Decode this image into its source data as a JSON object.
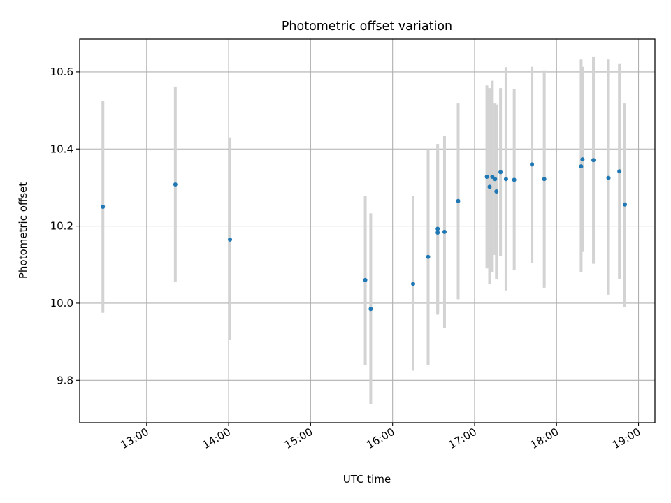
{
  "chart_data": {
    "type": "scatter",
    "title": "Photometric offset variation",
    "xlabel": "UTC time",
    "ylabel": "Photometric offset",
    "x_unit": "UTC time (HH:MM)",
    "xlim": [
      "12:11",
      "19:12"
    ],
    "ylim": [
      9.69,
      10.685
    ],
    "x_ticks": [
      "13:00",
      "14:00",
      "15:00",
      "16:00",
      "17:00",
      "18:00",
      "19:00"
    ],
    "y_ticks": [
      "9.8",
      "10.0",
      "10.2",
      "10.4",
      "10.6"
    ],
    "grid": true,
    "point_color": "#1f77b4",
    "errorbar_color": "#d3d3d3",
    "points": [
      {
        "x": "12:28",
        "y": 10.25,
        "low": 9.975,
        "high": 10.525
      },
      {
        "x": "13:21",
        "y": 10.308,
        "low": 10.055,
        "high": 10.562
      },
      {
        "x": "14:01",
        "y": 10.165,
        "low": 9.905,
        "high": 10.43
      },
      {
        "x": "15:40",
        "y": 10.06,
        "low": 9.84,
        "high": 10.278
      },
      {
        "x": "15:44",
        "y": 9.985,
        "low": 9.738,
        "high": 10.233
      },
      {
        "x": "16:15",
        "y": 10.05,
        "low": 9.825,
        "high": 10.278
      },
      {
        "x": "16:26",
        "y": 10.12,
        "low": 9.84,
        "high": 10.4
      },
      {
        "x": "16:33",
        "y": 10.193,
        "low": 9.97,
        "high": 10.413
      },
      {
        "x": "16:33",
        "y": 10.183,
        "low": 9.975,
        "high": 10.395
      },
      {
        "x": "16:38",
        "y": 10.185,
        "low": 9.935,
        "high": 10.433
      },
      {
        "x": "16:48",
        "y": 10.265,
        "low": 10.01,
        "high": 10.518
      },
      {
        "x": "17:09",
        "y": 10.328,
        "low": 10.09,
        "high": 10.565
      },
      {
        "x": "17:11",
        "y": 10.302,
        "low": 10.05,
        "high": 10.558
      },
      {
        "x": "17:13",
        "y": 10.328,
        "low": 10.08,
        "high": 10.577
      },
      {
        "x": "17:15",
        "y": 10.322,
        "low": 10.125,
        "high": 10.518
      },
      {
        "x": "17:16",
        "y": 10.29,
        "low": 10.063,
        "high": 10.515
      },
      {
        "x": "17:19",
        "y": 10.34,
        "low": 10.123,
        "high": 10.558
      },
      {
        "x": "17:23",
        "y": 10.322,
        "low": 10.033,
        "high": 10.612
      },
      {
        "x": "17:29",
        "y": 10.32,
        "low": 10.085,
        "high": 10.555
      },
      {
        "x": "17:42",
        "y": 10.36,
        "low": 10.105,
        "high": 10.613
      },
      {
        "x": "17:51",
        "y": 10.322,
        "low": 10.04,
        "high": 10.604
      },
      {
        "x": "18:18",
        "y": 10.355,
        "low": 10.08,
        "high": 10.632
      },
      {
        "x": "18:19",
        "y": 10.373,
        "low": 10.133,
        "high": 10.613
      },
      {
        "x": "18:27",
        "y": 10.371,
        "low": 10.102,
        "high": 10.64
      },
      {
        "x": "18:38",
        "y": 10.325,
        "low": 10.022,
        "high": 10.632
      },
      {
        "x": "18:46",
        "y": 10.342,
        "low": 10.062,
        "high": 10.622
      },
      {
        "x": "18:50",
        "y": 10.256,
        "low": 9.99,
        "high": 10.518
      }
    ]
  }
}
